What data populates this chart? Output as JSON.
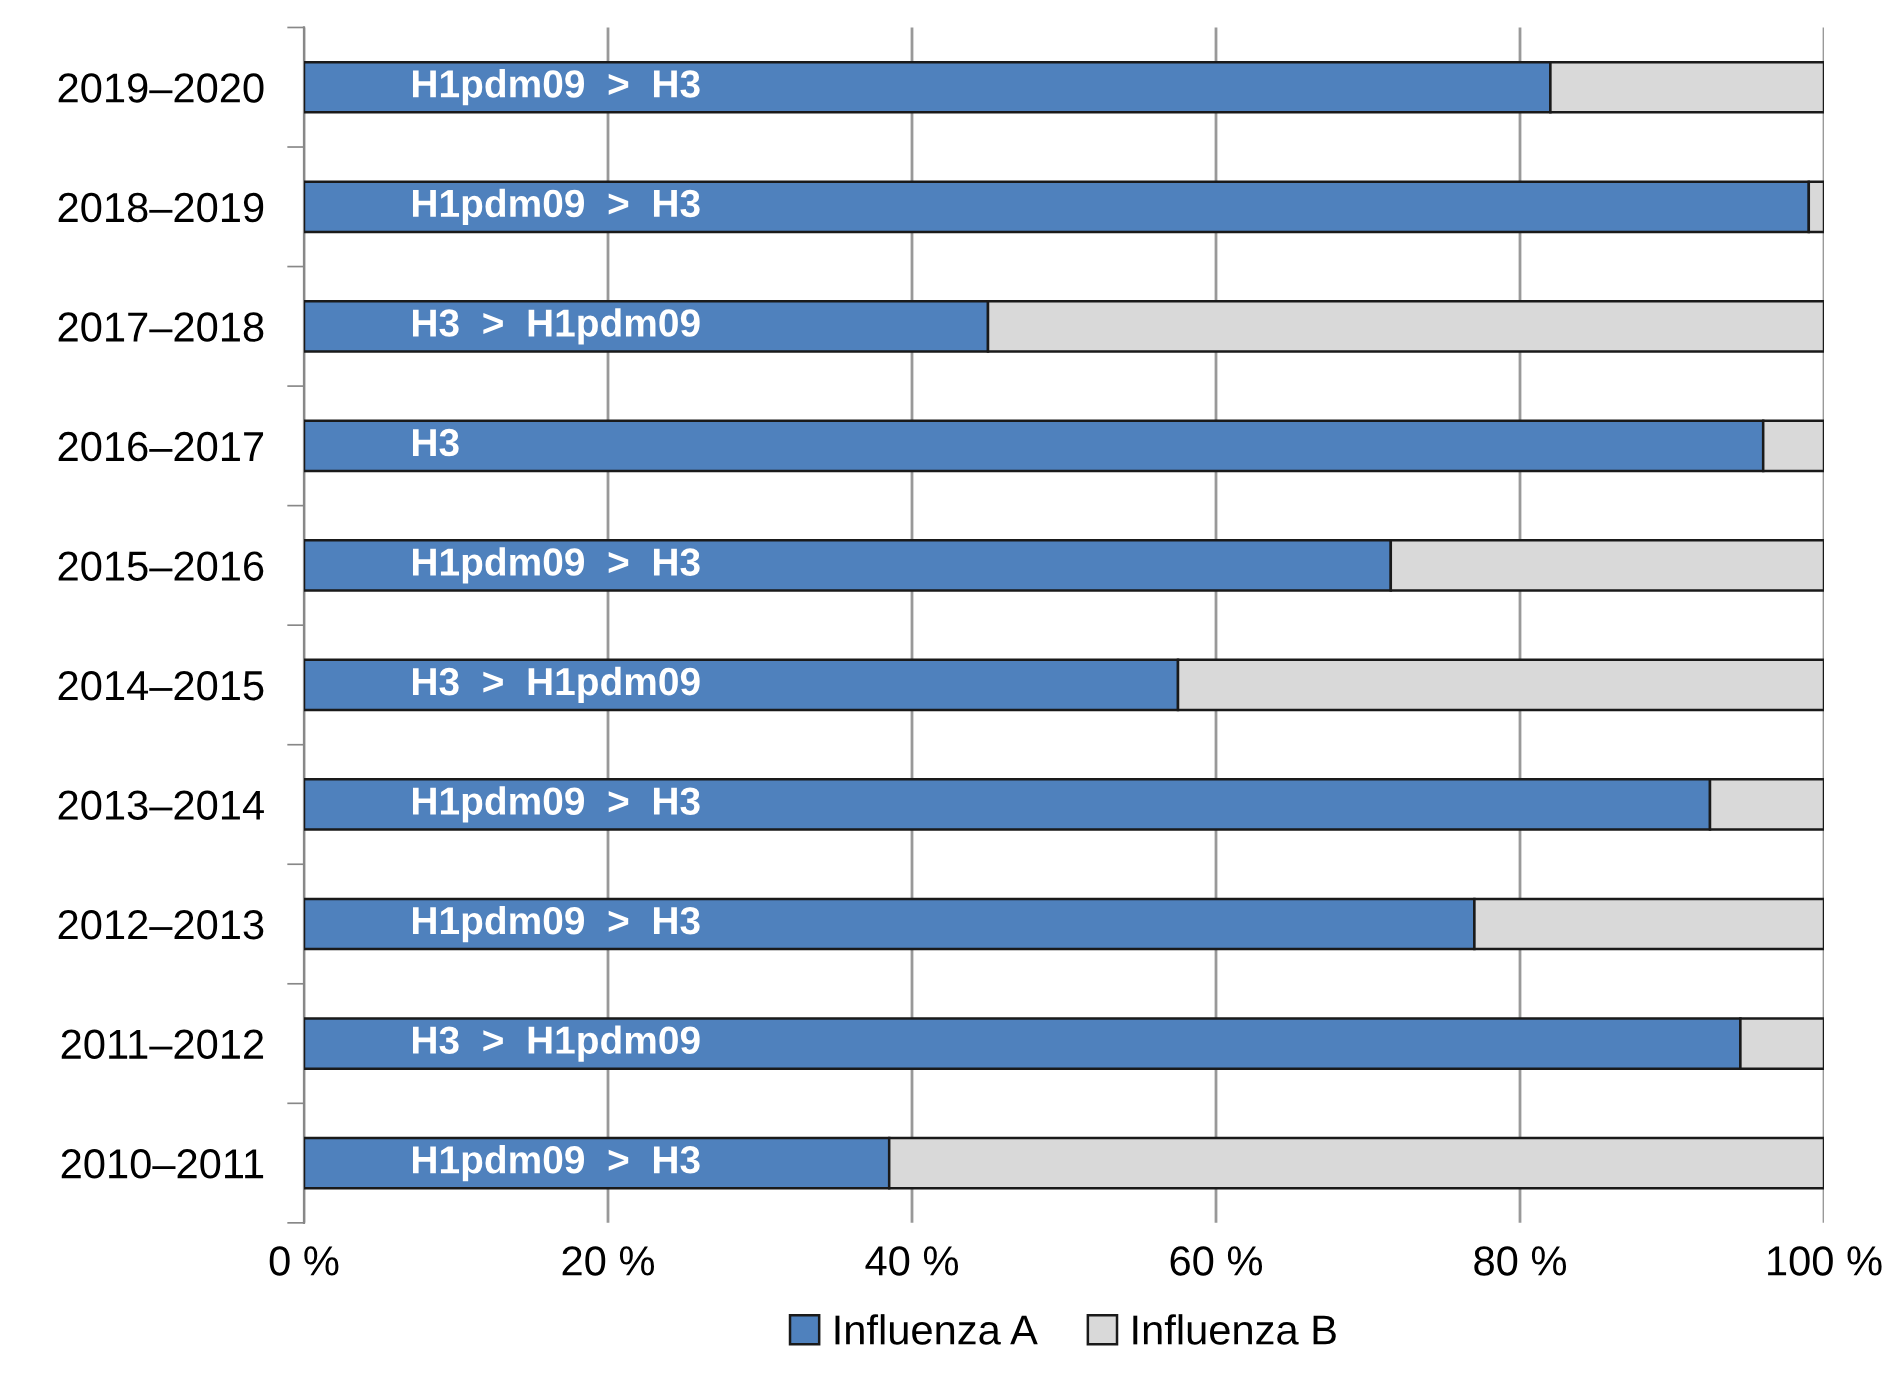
{
  "chart_data": {
    "type": "bar",
    "orientation": "horizontal",
    "stacked": true,
    "categories": [
      "2019–2020",
      "2018–2019",
      "2017–2018",
      "2016–2017",
      "2015–2016",
      "2014–2015",
      "2013–2014",
      "2012–2013",
      "2011–2012",
      "2010–2011"
    ],
    "series": [
      {
        "name": "Influenza A",
        "color": "#4f81bd",
        "values": [
          82,
          99,
          45,
          96,
          71.5,
          57.5,
          92.5,
          77,
          94.5,
          38.5
        ]
      },
      {
        "name": "Influenza B",
        "color": "#d9d9d9",
        "values": [
          18,
          1,
          55,
          4,
          28.5,
          42.5,
          7.5,
          23,
          5.5,
          61.5
        ]
      }
    ],
    "xlim": [
      0,
      100
    ],
    "xticks": [
      {
        "value": 0,
        "label": "0 %"
      },
      {
        "value": 20,
        "label": "20 %"
      },
      {
        "value": 40,
        "label": "40 %"
      },
      {
        "value": 60,
        "label": "60 %"
      },
      {
        "value": 80,
        "label": "80 %"
      },
      {
        "value": 100,
        "label": "100 %"
      }
    ],
    "grid": "x",
    "legend": "bottom",
    "annotations": [
      "H1pdm09  >  H3",
      "H1pdm09  >  H3",
      "H3  >  H1pdm09",
      "H3",
      "H1pdm09  >  H3",
      "H3  >  H1pdm09",
      "H1pdm09  >  H3",
      "H1pdm09  >  H3",
      "H3  >  H1pdm09",
      "H1pdm09  >  H3"
    ]
  }
}
